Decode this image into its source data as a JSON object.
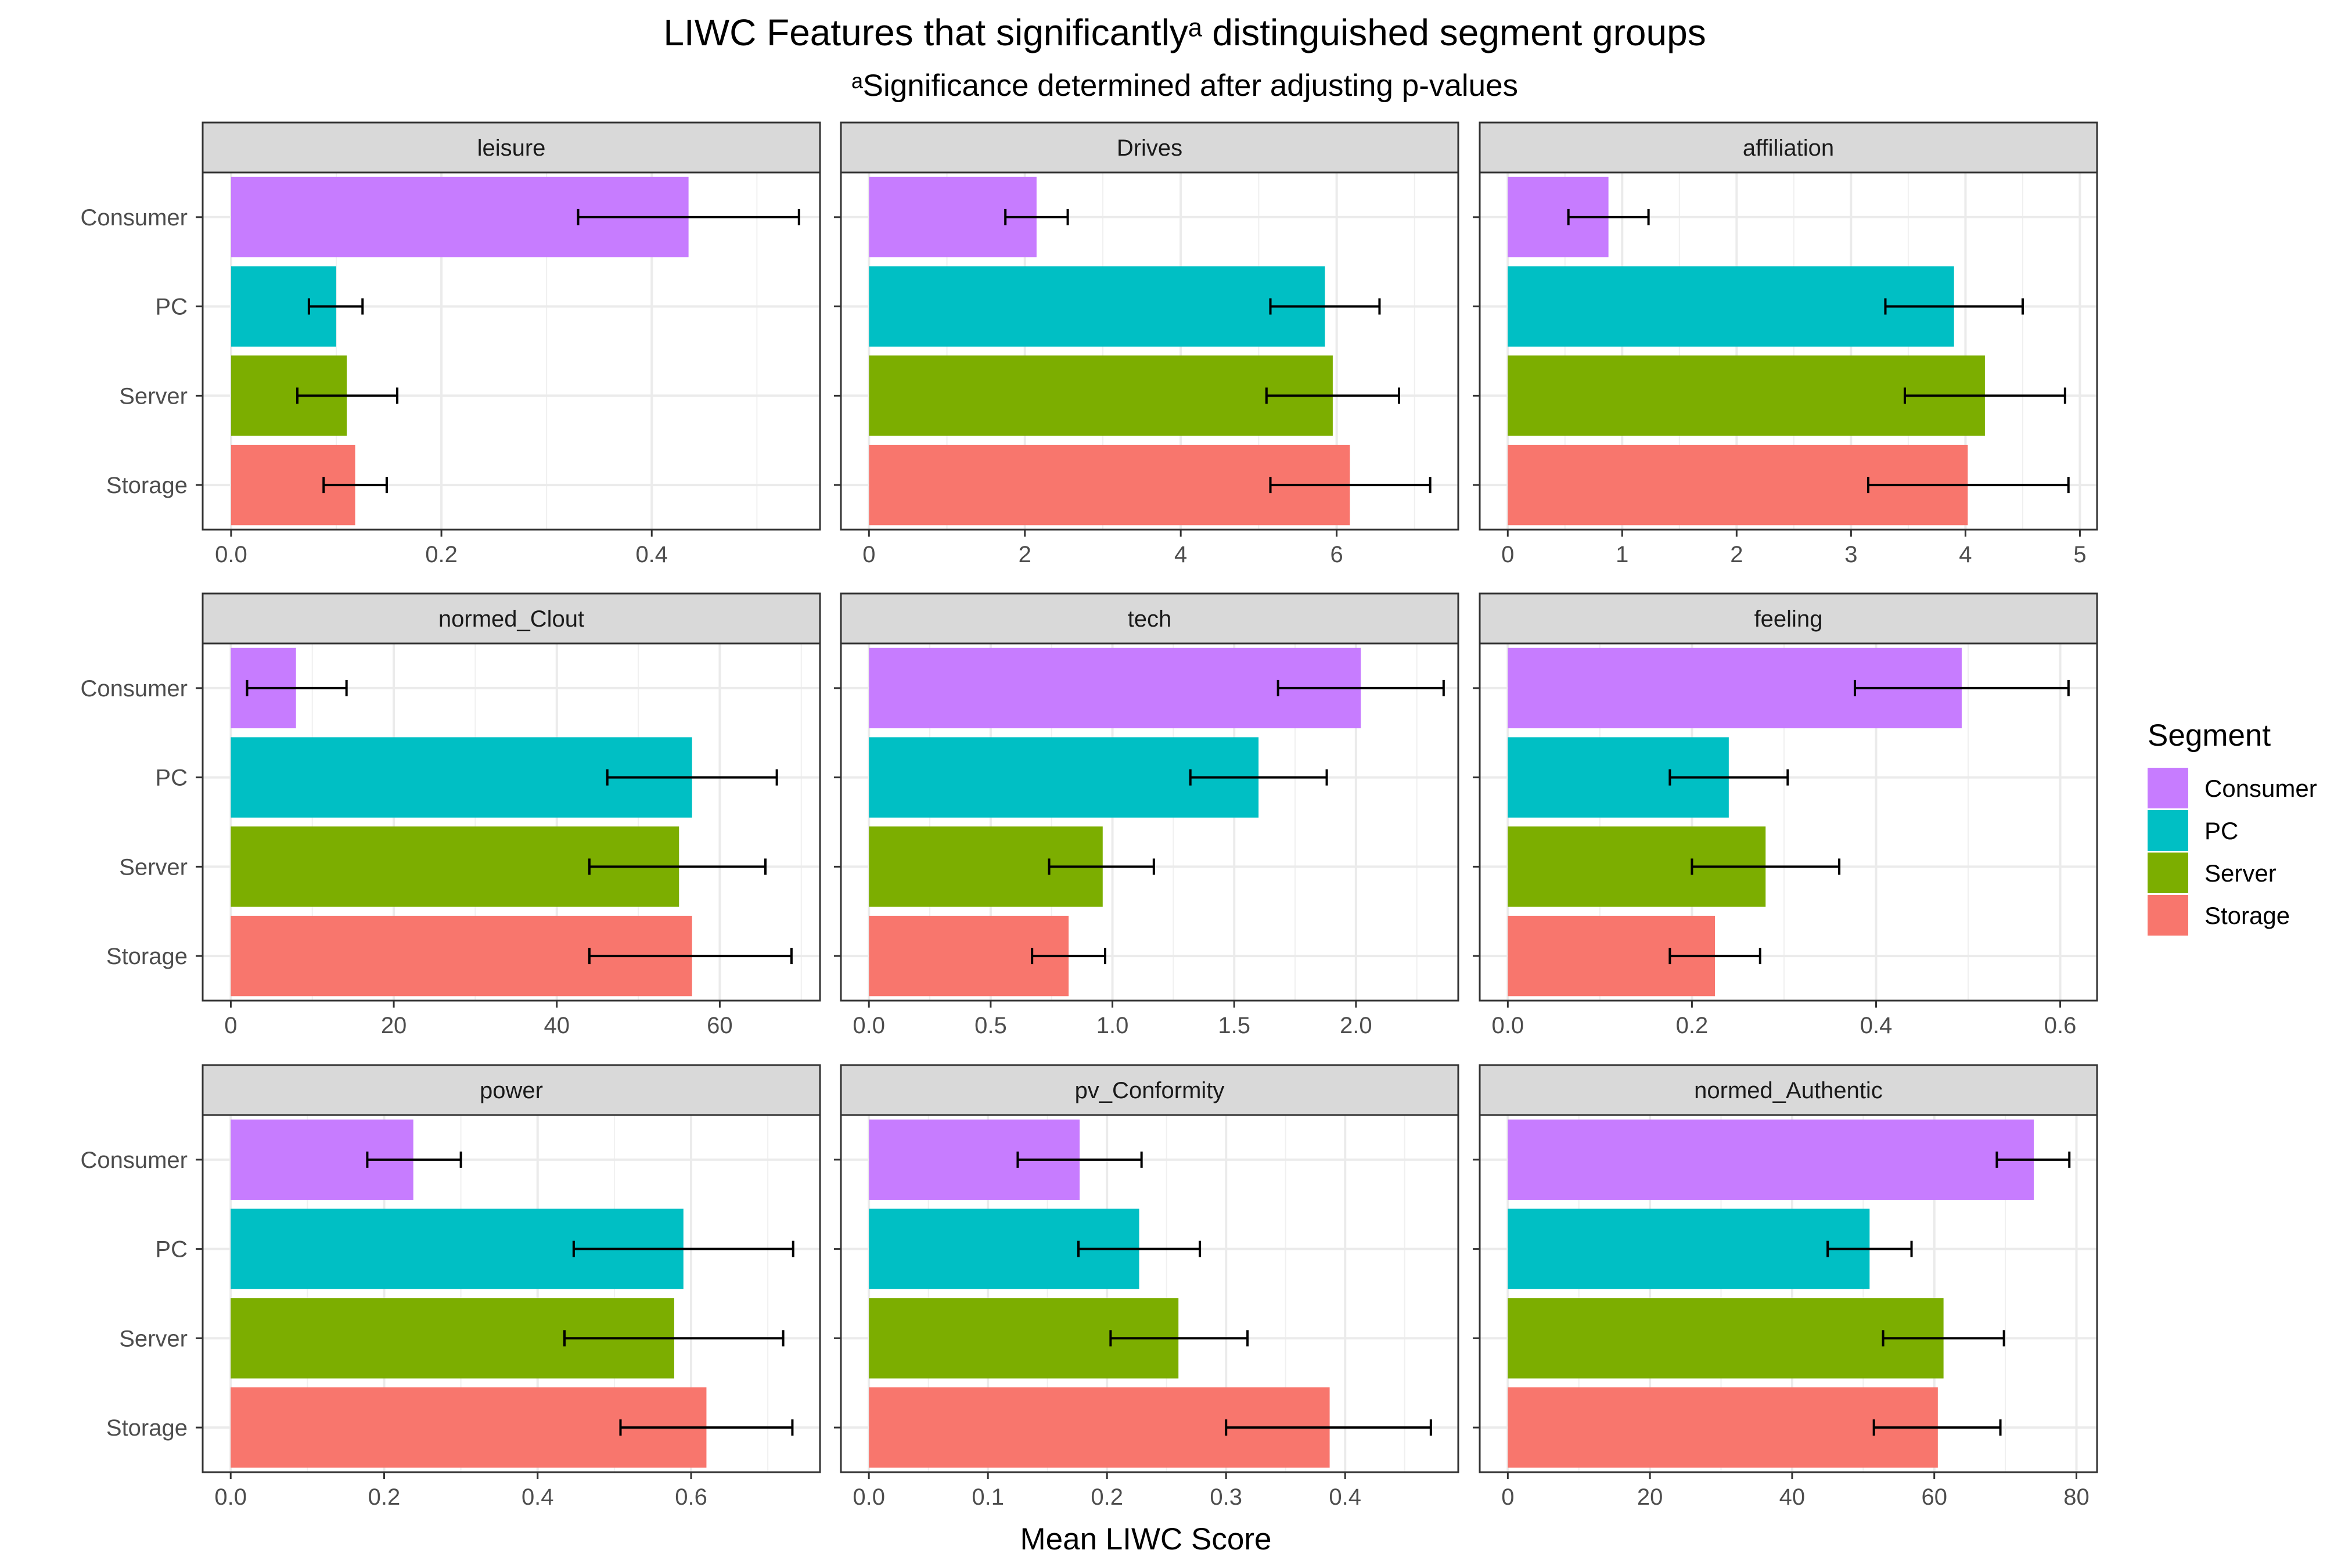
{
  "chart_data": {
    "type": "bar",
    "title": "LIWC Features that significantlyᵃ distinguished segment groups",
    "subtitle": "ᵃSignificance determined after adjusting p-values",
    "xlabel": "Mean LIWC Score",
    "ylabel": "",
    "categories": [
      "Consumer",
      "PC",
      "Server",
      "Storage"
    ],
    "legend": {
      "title": "Segment",
      "position": "right",
      "items": [
        {
          "label": "Consumer",
          "color": "#C77CFF"
        },
        {
          "label": "PC",
          "color": "#00BFC4"
        },
        {
          "label": "Server",
          "color": "#7CAE00"
        },
        {
          "label": "Storage",
          "color": "#F8766D"
        }
      ]
    },
    "panels": [
      {
        "name": "leisure",
        "xlim": [
          -0.027,
          0.56
        ],
        "ticks": [
          0,
          0.2,
          0.4
        ],
        "tick_labels": [
          "0.0",
          "0.2",
          "0.4"
        ],
        "series": [
          {
            "segment": "Consumer",
            "value": 0.435,
            "lo": 0.33,
            "hi": 0.54
          },
          {
            "segment": "PC",
            "value": 0.1,
            "lo": 0.074,
            "hi": 0.125
          },
          {
            "segment": "Server",
            "value": 0.11,
            "lo": 0.063,
            "hi": 0.158
          },
          {
            "segment": "Storage",
            "value": 0.118,
            "lo": 0.088,
            "hi": 0.148
          }
        ]
      },
      {
        "name": "Drives",
        "xlim": [
          -0.36,
          7.56
        ],
        "ticks": [
          0,
          2,
          4,
          6
        ],
        "tick_labels": [
          "0",
          "2",
          "4",
          "6"
        ],
        "series": [
          {
            "segment": "Consumer",
            "value": 2.15,
            "lo": 1.75,
            "hi": 2.55
          },
          {
            "segment": "PC",
            "value": 5.85,
            "lo": 5.15,
            "hi": 6.55
          },
          {
            "segment": "Server",
            "value": 5.95,
            "lo": 5.1,
            "hi": 6.8
          },
          {
            "segment": "Storage",
            "value": 6.17,
            "lo": 5.15,
            "hi": 7.2
          }
        ]
      },
      {
        "name": "affiliation",
        "xlim": [
          -0.245,
          5.15
        ],
        "ticks": [
          0,
          1,
          2,
          3,
          4,
          5
        ],
        "tick_labels": [
          "0",
          "1",
          "2",
          "3",
          "4",
          "5"
        ],
        "series": [
          {
            "segment": "Consumer",
            "value": 0.88,
            "lo": 0.53,
            "hi": 1.23
          },
          {
            "segment": "PC",
            "value": 3.9,
            "lo": 3.3,
            "hi": 4.5
          },
          {
            "segment": "Server",
            "value": 4.17,
            "lo": 3.47,
            "hi": 4.87
          },
          {
            "segment": "Storage",
            "value": 4.02,
            "lo": 3.15,
            "hi": 4.9
          }
        ]
      },
      {
        "name": "normed_Clout",
        "xlim": [
          -3.45,
          72.3
        ],
        "ticks": [
          0,
          20,
          40,
          60
        ],
        "tick_labels": [
          "0",
          "20",
          "40",
          "60"
        ],
        "series": [
          {
            "segment": "Consumer",
            "value": 8.0,
            "lo": 2.0,
            "hi": 14.2
          },
          {
            "segment": "PC",
            "value": 56.6,
            "lo": 46.2,
            "hi": 67.0
          },
          {
            "segment": "Server",
            "value": 55.0,
            "lo": 44.0,
            "hi": 65.6
          },
          {
            "segment": "Storage",
            "value": 56.6,
            "lo": 44.0,
            "hi": 68.8
          }
        ]
      },
      {
        "name": "tech",
        "xlim": [
          -0.115,
          2.42
        ],
        "ticks": [
          0,
          0.5,
          1,
          1.5,
          2
        ],
        "tick_labels": [
          "0.0",
          "0.5",
          "1.0",
          "1.5",
          "2.0"
        ],
        "series": [
          {
            "segment": "Consumer",
            "value": 2.02,
            "lo": 1.68,
            "hi": 2.36
          },
          {
            "segment": "PC",
            "value": 1.6,
            "lo": 1.32,
            "hi": 1.88
          },
          {
            "segment": "Server",
            "value": 0.96,
            "lo": 0.74,
            "hi": 1.17
          },
          {
            "segment": "Storage",
            "value": 0.82,
            "lo": 0.67,
            "hi": 0.97
          }
        ]
      },
      {
        "name": "feeling",
        "xlim": [
          -0.0305,
          0.64
        ],
        "ticks": [
          0,
          0.2,
          0.4,
          0.6
        ],
        "tick_labels": [
          "0.0",
          "0.2",
          "0.4",
          "0.6"
        ],
        "series": [
          {
            "segment": "Consumer",
            "value": 0.493,
            "lo": 0.377,
            "hi": 0.609
          },
          {
            "segment": "PC",
            "value": 0.24,
            "lo": 0.176,
            "hi": 0.304
          },
          {
            "segment": "Server",
            "value": 0.28,
            "lo": 0.2,
            "hi": 0.36
          },
          {
            "segment": "Storage",
            "value": 0.225,
            "lo": 0.176,
            "hi": 0.274
          }
        ]
      },
      {
        "name": "power",
        "xlim": [
          -0.0365,
          0.768
        ],
        "ticks": [
          0,
          0.2,
          0.4,
          0.6
        ],
        "tick_labels": [
          "0.0",
          "0.2",
          "0.4",
          "0.6"
        ],
        "series": [
          {
            "segment": "Consumer",
            "value": 0.238,
            "lo": 0.178,
            "hi": 0.3
          },
          {
            "segment": "PC",
            "value": 0.59,
            "lo": 0.447,
            "hi": 0.733
          },
          {
            "segment": "Server",
            "value": 0.578,
            "lo": 0.435,
            "hi": 0.72
          },
          {
            "segment": "Storage",
            "value": 0.62,
            "lo": 0.508,
            "hi": 0.732
          }
        ]
      },
      {
        "name": "pv_Conformity",
        "xlim": [
          -0.0235,
          0.495
        ],
        "ticks": [
          0,
          0.1,
          0.2,
          0.3,
          0.4
        ],
        "tick_labels": [
          "0.0",
          "0.1",
          "0.2",
          "0.3",
          "0.4"
        ],
        "series": [
          {
            "segment": "Consumer",
            "value": 0.177,
            "lo": 0.125,
            "hi": 0.229
          },
          {
            "segment": "PC",
            "value": 0.227,
            "lo": 0.176,
            "hi": 0.278
          },
          {
            "segment": "Server",
            "value": 0.26,
            "lo": 0.203,
            "hi": 0.318
          },
          {
            "segment": "Storage",
            "value": 0.387,
            "lo": 0.3,
            "hi": 0.472
          }
        ]
      },
      {
        "name": "normed_Authentic",
        "xlim": [
          -3.95,
          82.9
        ],
        "ticks": [
          0,
          20,
          40,
          60,
          80
        ],
        "tick_labels": [
          "0",
          "20",
          "40",
          "60",
          "80"
        ],
        "series": [
          {
            "segment": "Consumer",
            "value": 74.0,
            "lo": 68.8,
            "hi": 79.0
          },
          {
            "segment": "PC",
            "value": 50.9,
            "lo": 45.0,
            "hi": 56.8
          },
          {
            "segment": "Server",
            "value": 61.3,
            "lo": 52.8,
            "hi": 69.8
          },
          {
            "segment": "Storage",
            "value": 60.5,
            "lo": 51.5,
            "hi": 69.3
          }
        ]
      }
    ],
    "grid": true
  }
}
